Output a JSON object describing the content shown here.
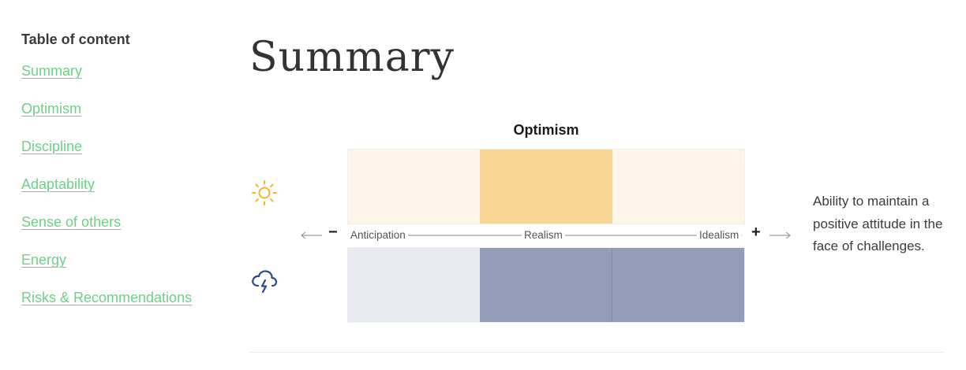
{
  "toc": {
    "title": "Table of content",
    "items": [
      {
        "label": "Summary"
      },
      {
        "label": "Optimism"
      },
      {
        "label": "Discipline"
      },
      {
        "label": "Adaptability"
      },
      {
        "label": "Sense of others"
      },
      {
        "label": "Energy"
      },
      {
        "label": "Risks & Recommendations"
      }
    ]
  },
  "main": {
    "title": "Summary",
    "trait": {
      "name": "Optimism",
      "description": "Ability to maintain a positive attitude in the face of challenges.",
      "axis": {
        "minus_symbol": "−",
        "plus_symbol": "+",
        "labels": [
          "Anticipation",
          "Realism",
          "Idealism"
        ]
      },
      "top_band": {
        "icon": "sun-icon",
        "segments": [
          {
            "color": "#fdf5e9"
          },
          {
            "color": "#f7d593"
          },
          {
            "color": "#fdf5e9"
          }
        ]
      },
      "bottom_band": {
        "icon": "storm-cloud-icon",
        "segments": [
          {
            "color": "#e7eaf0"
          },
          {
            "color": "#919db9"
          },
          {
            "color": "#919db9"
          }
        ]
      }
    }
  },
  "colors": {
    "link": "#6fcf8a",
    "sun": "#f0b62d",
    "storm": "#2e4a86"
  }
}
